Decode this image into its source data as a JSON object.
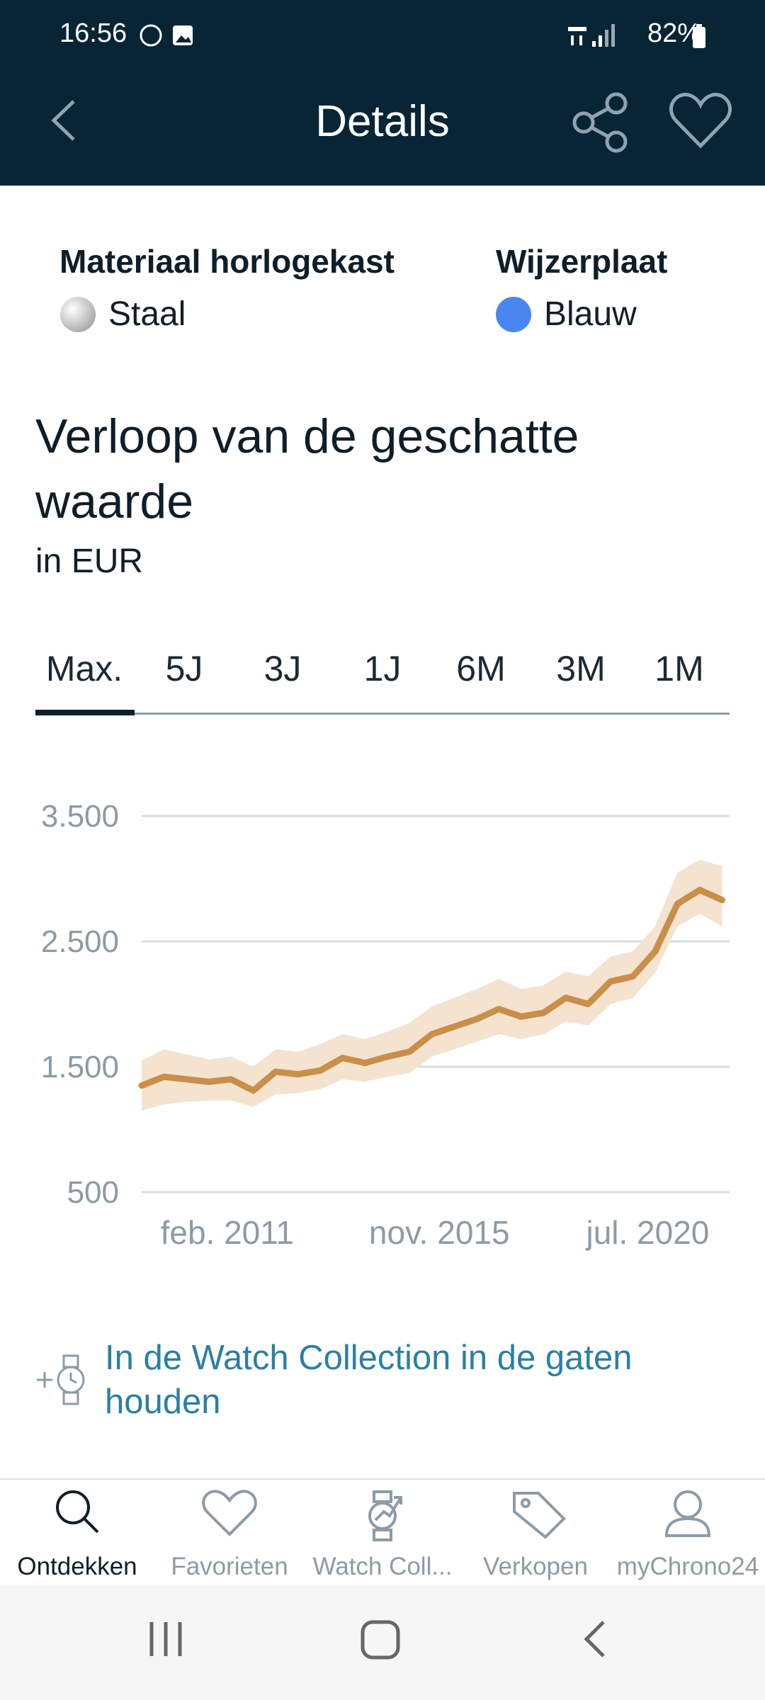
{
  "status_bar": {
    "time": "16:56",
    "battery": "82%"
  },
  "header": {
    "title": "Details"
  },
  "specs": [
    {
      "label": "Materiaal horlogekast",
      "value": "Staal"
    },
    {
      "label": "Wijzerplaat",
      "value": "Blauw"
    }
  ],
  "range_tabs": {
    "options": [
      "Max.",
      "5J",
      "3J",
      "1J",
      "6M",
      "3M",
      "1M"
    ],
    "selected": 0
  },
  "chart_data": {
    "type": "line",
    "title": "Verloop van de geschatte waarde",
    "subtitle": "in EUR",
    "x": [
      "2009-03",
      "2009-09",
      "2010-03",
      "2010-09",
      "2011-03",
      "2011-09",
      "2012-03",
      "2012-09",
      "2013-03",
      "2013-09",
      "2014-03",
      "2014-09",
      "2015-03",
      "2015-09",
      "2016-03",
      "2016-09",
      "2017-03",
      "2017-09",
      "2018-03",
      "2018-09",
      "2019-03",
      "2019-09",
      "2020-03",
      "2020-09",
      "2021-03",
      "2021-09",
      "2022-03"
    ],
    "series": [
      {
        "color": "#c98e4a",
        "values": [
          1350,
          1420,
          1400,
          1380,
          1400,
          1310,
          1460,
          1440,
          1470,
          1570,
          1530,
          1580,
          1620,
          1760,
          1820,
          1880,
          1960,
          1900,
          1930,
          2050,
          2000,
          2180,
          2220,
          2420,
          2800,
          2910,
          2830
        ],
        "band": {
          "color": "#f4e3cf",
          "low": [
            1150,
            1200,
            1220,
            1230,
            1230,
            1180,
            1280,
            1290,
            1320,
            1400,
            1380,
            1420,
            1450,
            1580,
            1640,
            1700,
            1760,
            1720,
            1760,
            1860,
            1830,
            2000,
            2050,
            2250,
            2620,
            2720,
            2620
          ],
          "high": [
            1550,
            1640,
            1600,
            1560,
            1580,
            1500,
            1640,
            1620,
            1680,
            1760,
            1720,
            1780,
            1850,
            1980,
            2050,
            2120,
            2200,
            2120,
            2150,
            2260,
            2220,
            2380,
            2420,
            2620,
            3050,
            3150,
            3100
          ]
        }
      }
    ],
    "xlim": [
      "2009-03",
      "2022-05"
    ],
    "xticks": [
      {
        "value": "2011-02",
        "label": "feb. 2011"
      },
      {
        "value": "2015-11",
        "label": "nov. 2015"
      },
      {
        "value": "2020-07",
        "label": "jul. 2020"
      }
    ],
    "ylim": [
      500,
      3500
    ],
    "yticks": [
      500,
      {
        "value": 1500,
        "label": "1.500"
      },
      {
        "value": 2500,
        "label": "2.500"
      },
      {
        "value": 3500,
        "label": "3.500"
      }
    ],
    "grid": true
  },
  "cta": {
    "text": "In de Watch Collection in de gaten houden"
  },
  "bottom_nav": {
    "items": [
      "Ontdekken",
      "Favorieten",
      "Watch Coll...",
      "Verkopen",
      "myChrono24"
    ],
    "selected": 0
  }
}
